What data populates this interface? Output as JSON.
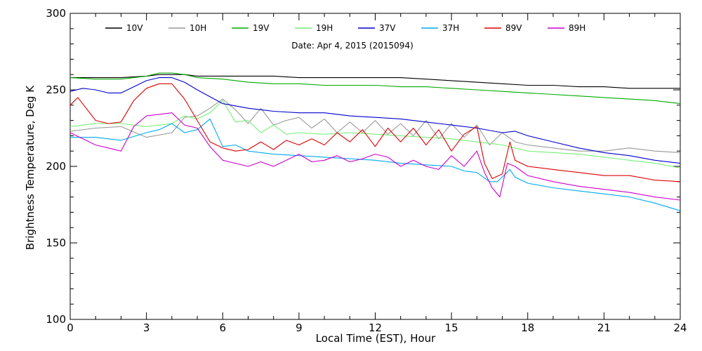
{
  "chart_data": {
    "type": "line",
    "date_label": "Date: Apr  4, 2015 (2015094)",
    "xlabel": "Local Time (EST), Hour",
    "ylabel": "Brightness Temperature, Deg K",
    "xlim": [
      0,
      24
    ],
    "ylim": [
      100,
      300
    ],
    "xticks": [
      0,
      3,
      6,
      9,
      12,
      15,
      18,
      21,
      24
    ],
    "yticks": [
      100,
      150,
      200,
      250,
      300
    ],
    "legend_position": "top",
    "series": [
      {
        "name": "10V",
        "color": "#000000",
        "x": [
          0,
          1,
          2,
          3,
          3.5,
          4,
          4.5,
          5,
          6,
          7,
          8,
          9,
          10,
          11,
          12,
          13,
          14,
          15,
          16,
          17,
          18,
          19,
          20,
          21,
          22,
          23,
          24
        ],
        "y": [
          258,
          258,
          258,
          259,
          260,
          260,
          260,
          259,
          259,
          259,
          259,
          258,
          258,
          258,
          258,
          258,
          257,
          256,
          255,
          254,
          253,
          253,
          252,
          252,
          251,
          251,
          251
        ]
      },
      {
        "name": "10H",
        "color": "#999999",
        "x": [
          0,
          1,
          2,
          3,
          4,
          4.5,
          5,
          5.5,
          6,
          6.5,
          7,
          7.5,
          8,
          8.5,
          9,
          9.5,
          10,
          10.5,
          11,
          11.5,
          12,
          12.5,
          13,
          13.5,
          14,
          14.5,
          15,
          15.5,
          16,
          16.5,
          17,
          17.5,
          18,
          19,
          20,
          21,
          22,
          23,
          24
        ],
        "y": [
          223,
          225,
          226,
          219,
          222,
          232,
          233,
          238,
          244,
          237,
          228,
          238,
          227,
          230,
          232,
          225,
          231,
          222,
          229,
          222,
          230,
          221,
          228,
          220,
          230,
          218,
          228,
          219,
          227,
          214,
          222,
          216,
          214,
          212,
          210,
          210,
          212,
          210,
          209
        ]
      },
      {
        "name": "19V",
        "color": "#00aa00",
        "x": [
          0,
          1,
          2,
          3,
          3.5,
          4,
          4.5,
          5,
          6,
          7,
          8,
          9,
          10,
          11,
          12,
          13,
          14,
          15,
          16,
          17,
          18,
          19,
          20,
          21,
          22,
          23,
          24
        ],
        "y": [
          258,
          257,
          257,
          259,
          261,
          261,
          260,
          258,
          257,
          255,
          254,
          254,
          253,
          253,
          253,
          252,
          252,
          251,
          250,
          249,
          248,
          247,
          246,
          245,
          244,
          243,
          241
        ]
      },
      {
        "name": "19H",
        "color": "#77ee77",
        "x": [
          0,
          1,
          2,
          3,
          4,
          4.5,
          5,
          5.5,
          6,
          6.5,
          7,
          7.5,
          8,
          8.5,
          9,
          10,
          11,
          12,
          13,
          14,
          15,
          16,
          17,
          18,
          19,
          20,
          21,
          22,
          23,
          24
        ],
        "y": [
          226,
          228,
          228,
          226,
          228,
          233,
          231,
          235,
          243,
          229,
          230,
          222,
          227,
          221,
          222,
          221,
          222,
          221,
          220,
          219,
          218,
          216,
          214,
          210,
          209,
          208,
          206,
          204,
          202,
          199
        ]
      },
      {
        "name": "37V",
        "color": "#0000cc",
        "x": [
          0,
          0.5,
          1,
          1.5,
          2,
          3,
          3.5,
          4,
          4.5,
          5,
          6,
          7,
          8,
          9,
          10,
          11,
          12,
          13,
          14,
          15,
          16,
          17,
          17.5,
          18,
          19,
          20,
          21,
          22,
          23,
          24
        ],
        "y": [
          249,
          251,
          250,
          248,
          248,
          256,
          258,
          258,
          255,
          250,
          241,
          238,
          236,
          235,
          235,
          233,
          232,
          231,
          229,
          227,
          225,
          222,
          223,
          220,
          216,
          212,
          209,
          207,
          204,
          202
        ]
      },
      {
        "name": "37H",
        "color": "#00aaee",
        "x": [
          0,
          1,
          1.5,
          2,
          3,
          3.5,
          4,
          4.5,
          5,
          5.5,
          6,
          6.5,
          7,
          8,
          9,
          10,
          11,
          12,
          13,
          14,
          15,
          15.5,
          16,
          16.5,
          16.8,
          17,
          17.3,
          17.5,
          18,
          19,
          20,
          21,
          22,
          23,
          24
        ],
        "y": [
          219,
          219,
          218,
          217,
          222,
          224,
          228,
          222,
          224,
          231,
          213,
          214,
          210,
          208,
          207,
          206,
          205,
          204,
          202,
          201,
          200,
          197,
          196,
          190,
          190,
          193,
          198,
          193,
          189,
          186,
          184,
          182,
          180,
          176,
          171
        ]
      },
      {
        "name": "89V",
        "color": "#dd0000",
        "x": [
          0,
          0.3,
          1,
          1.5,
          2,
          2.5,
          3,
          3.5,
          4,
          4.5,
          5,
          5.5,
          6,
          6.5,
          7,
          7.5,
          8,
          8.5,
          9,
          9.5,
          10,
          10.5,
          11,
          11.5,
          12,
          12.5,
          13,
          13.5,
          14,
          14.5,
          15,
          15.5,
          16,
          16.3,
          16.6,
          17,
          17.3,
          17.5,
          18,
          19,
          20,
          21,
          22,
          23,
          24
        ],
        "y": [
          240,
          245,
          230,
          228,
          229,
          243,
          251,
          254,
          254,
          244,
          230,
          216,
          212,
          210,
          211,
          216,
          211,
          217,
          214,
          218,
          214,
          222,
          216,
          224,
          213,
          225,
          216,
          225,
          214,
          224,
          210,
          221,
          226,
          202,
          192,
          195,
          216,
          204,
          200,
          198,
          196,
          194,
          194,
          191,
          190
        ]
      },
      {
        "name": "89H",
        "color": "#cc00cc",
        "x": [
          0,
          1,
          1.5,
          2,
          2.5,
          3,
          3.5,
          4,
          4.5,
          5,
          5.5,
          6,
          6.5,
          7,
          7.5,
          8,
          8.5,
          9,
          9.5,
          10,
          10.5,
          11,
          11.5,
          12,
          12.5,
          13,
          13.5,
          14,
          14.5,
          15,
          15.5,
          16,
          16.3,
          16.6,
          16.9,
          17.2,
          17.5,
          18,
          19,
          20,
          21,
          22,
          23,
          24
        ],
        "y": [
          222,
          214,
          212,
          210,
          226,
          233,
          234,
          235,
          227,
          225,
          213,
          204,
          202,
          200,
          203,
          200,
          204,
          208,
          203,
          204,
          207,
          203,
          205,
          208,
          206,
          200,
          204,
          200,
          198,
          207,
          200,
          210,
          196,
          186,
          180,
          202,
          200,
          194,
          190,
          187,
          185,
          183,
          180,
          178
        ]
      }
    ]
  }
}
